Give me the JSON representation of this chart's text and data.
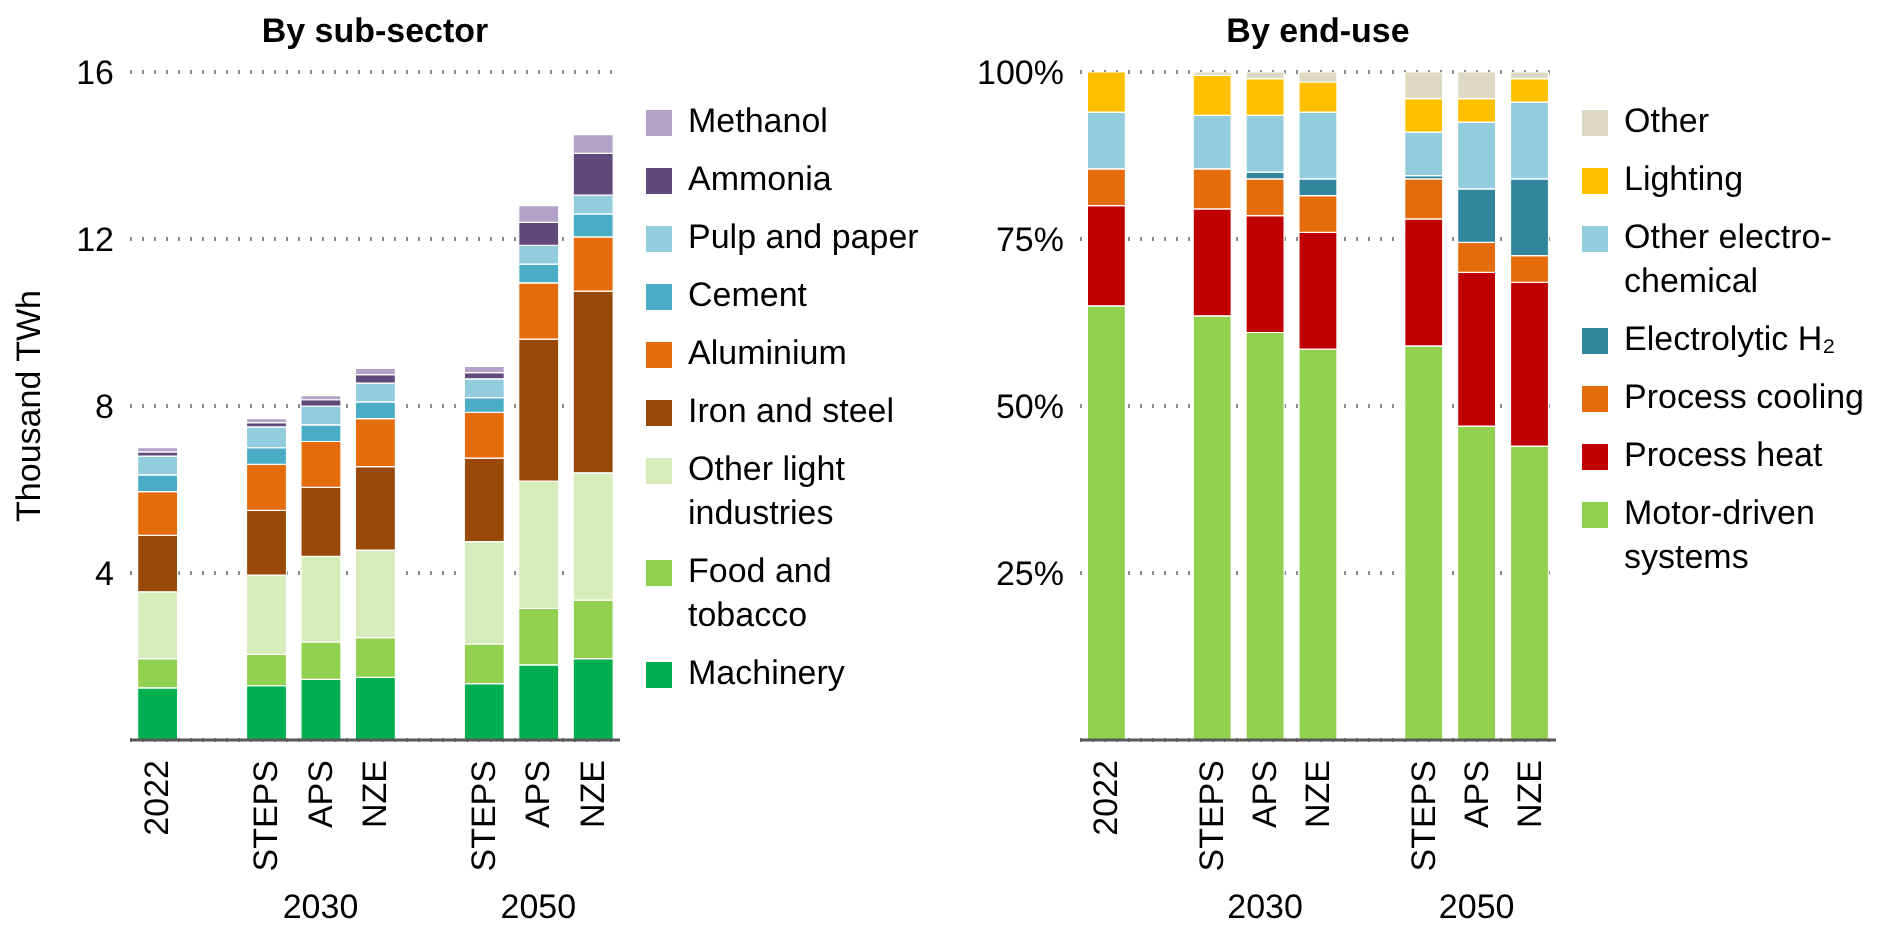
{
  "chart_data": [
    {
      "type": "bar",
      "title": "By sub-sector",
      "ylabel": "Thousand TWh",
      "stacked": true,
      "grid": "y",
      "legend": "right",
      "categories": [
        "2022",
        null,
        "STEPS",
        "APS",
        "NZE",
        null,
        "STEPS",
        "APS",
        "NZE"
      ],
      "annotations": [
        "2030",
        "2050"
      ],
      "ylim": [
        0,
        16
      ],
      "yticks": [
        4,
        8,
        12,
        16
      ],
      "series": [
        {
          "name": "Machinery",
          "color": "#00b050",
          "values": [
            1.25,
            null,
            1.3,
            1.45,
            1.5,
            null,
            1.35,
            1.8,
            1.95
          ]
        },
        {
          "name": "Food and tobacco",
          "color": "#92d050",
          "values": [
            0.7,
            null,
            0.75,
            0.9,
            0.95,
            null,
            0.95,
            1.35,
            1.4
          ]
        },
        {
          "name": "Other light industries",
          "color": "#d7ecbb",
          "values": [
            1.6,
            null,
            1.9,
            2.05,
            2.1,
            null,
            2.45,
            3.05,
            3.05
          ]
        },
        {
          "name": "Iron and steel",
          "color": "#984807",
          "values": [
            1.35,
            null,
            1.55,
            1.65,
            2.0,
            null,
            2.0,
            3.4,
            4.35
          ]
        },
        {
          "name": "Aluminium",
          "color": "#e46c0a",
          "values": [
            1.05,
            null,
            1.1,
            1.1,
            1.15,
            null,
            1.1,
            1.35,
            1.3
          ]
        },
        {
          "name": "Cement",
          "color": "#4bacc6",
          "values": [
            0.4,
            null,
            0.4,
            0.4,
            0.4,
            null,
            0.35,
            0.45,
            0.55
          ]
        },
        {
          "name": "Pulp and paper",
          "color": "#93cddd",
          "values": [
            0.45,
            null,
            0.5,
            0.45,
            0.45,
            null,
            0.45,
            0.45,
            0.45
          ]
        },
        {
          "name": "Ammonia",
          "color": "#604a7b",
          "values": [
            0.1,
            null,
            0.1,
            0.15,
            0.2,
            null,
            0.15,
            0.55,
            1.0
          ]
        },
        {
          "name": "Methanol",
          "color": "#b3a2c7",
          "values": [
            0.1,
            null,
            0.1,
            0.1,
            0.15,
            null,
            0.15,
            0.4,
            0.45
          ]
        }
      ]
    },
    {
      "type": "bar",
      "title": "By end-use",
      "stacked": true,
      "grid": "y",
      "legend": "right",
      "categories": [
        "2022",
        null,
        "STEPS",
        "APS",
        "NZE",
        null,
        "STEPS",
        "APS",
        "NZE"
      ],
      "annotations": [
        "2030",
        "2050"
      ],
      "ylim": [
        0,
        100
      ],
      "yticks": [
        {
          "value": 25,
          "label": "25%"
        },
        {
          "value": 50,
          "label": "50%"
        },
        {
          "value": 75,
          "label": "75%"
        },
        {
          "value": 100,
          "label": "100%"
        }
      ],
      "series": [
        {
          "name": "Motor-driven systems",
          "color": "#92d050",
          "values": [
            65,
            null,
            63.5,
            61,
            58.5,
            null,
            59,
            47,
            44
          ]
        },
        {
          "name": "Process heat",
          "color": "#c00000",
          "values": [
            15,
            null,
            16,
            17.5,
            17.5,
            null,
            19,
            23,
            24.5
          ]
        },
        {
          "name": "Process cooling",
          "color": "#e46c0a",
          "values": [
            5.5,
            null,
            6,
            5.5,
            5.5,
            null,
            6,
            4.5,
            4
          ]
        },
        {
          "name": "Electrolytic H₂",
          "color": "#31859c",
          "values": [
            0,
            null,
            0,
            1,
            2.5,
            null,
            0.5,
            8,
            11.5
          ]
        },
        {
          "name": "Other electro-chemical",
          "color": "#93cddd",
          "values": [
            8.5,
            null,
            8,
            8.5,
            10,
            null,
            6.5,
            10,
            11.5
          ]
        },
        {
          "name": "Lighting",
          "color": "#ffc000",
          "values": [
            6,
            null,
            6,
            5.5,
            4.5,
            null,
            5,
            3.5,
            3.5
          ]
        },
        {
          "name": "Other",
          "color": "#ddd9c3",
          "values": [
            0,
            null,
            0.5,
            1,
            1.5,
            null,
            4,
            4,
            1
          ]
        }
      ]
    }
  ]
}
